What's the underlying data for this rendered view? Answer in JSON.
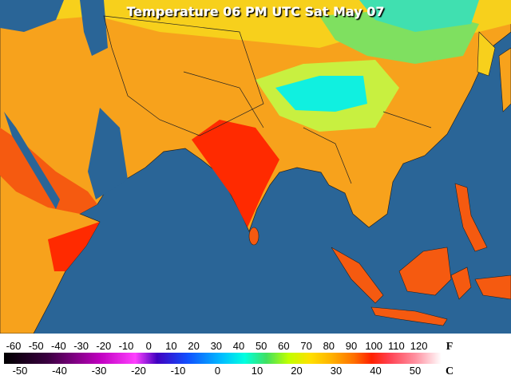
{
  "title": "Temperature 06 PM UTC Sat May 07",
  "scale": {
    "fahrenheit": {
      "unit": "F",
      "labels": [
        -60,
        -50,
        -40,
        -30,
        -20,
        -10,
        0,
        10,
        20,
        30,
        40,
        50,
        60,
        70,
        80,
        90,
        100,
        110,
        120
      ]
    },
    "celsius": {
      "unit": "C",
      "labels": [
        -50,
        -40,
        -30,
        -20,
        -10,
        0,
        10,
        20,
        30,
        40,
        50
      ]
    }
  }
}
